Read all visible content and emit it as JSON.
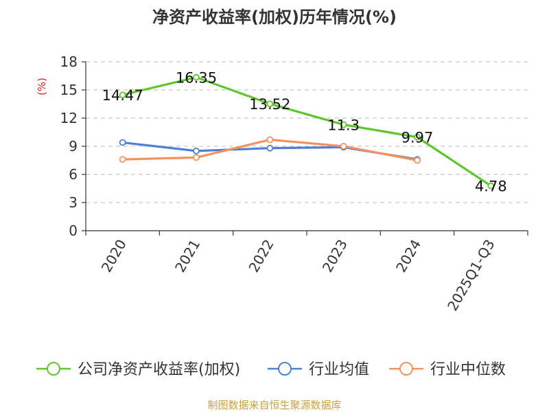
{
  "chart_data": {
    "type": "line",
    "title": "净资产收益率(加权)历年情况(%)",
    "ylabel": "(%)",
    "xlabel": "",
    "categories": [
      "2020",
      "2021",
      "2022",
      "2023",
      "2024",
      "2025Q1-Q3"
    ],
    "y_ticks": [
      "0",
      "3",
      "6",
      "9",
      "12",
      "15",
      "18"
    ],
    "ylim": [
      0,
      18
    ],
    "grid": true,
    "legend_position": "bottom",
    "series": [
      {
        "name": "公司净资产收益率(加权)",
        "color": "#5ec62c",
        "values": [
          14.47,
          16.35,
          13.52,
          11.3,
          9.97,
          4.78
        ],
        "labels": [
          "14.47",
          "16.35",
          "13.52",
          "11.3",
          "9.97",
          "4.78"
        ]
      },
      {
        "name": "行业均值",
        "color": "#4e7fd6",
        "values": [
          9.4,
          8.5,
          8.8,
          8.9,
          7.6,
          null
        ]
      },
      {
        "name": "行业中位数",
        "color": "#f5915e",
        "values": [
          7.6,
          7.8,
          9.7,
          9.0,
          7.5,
          null
        ]
      }
    ]
  },
  "source_text": "制图数据来自恒生聚源数据库"
}
